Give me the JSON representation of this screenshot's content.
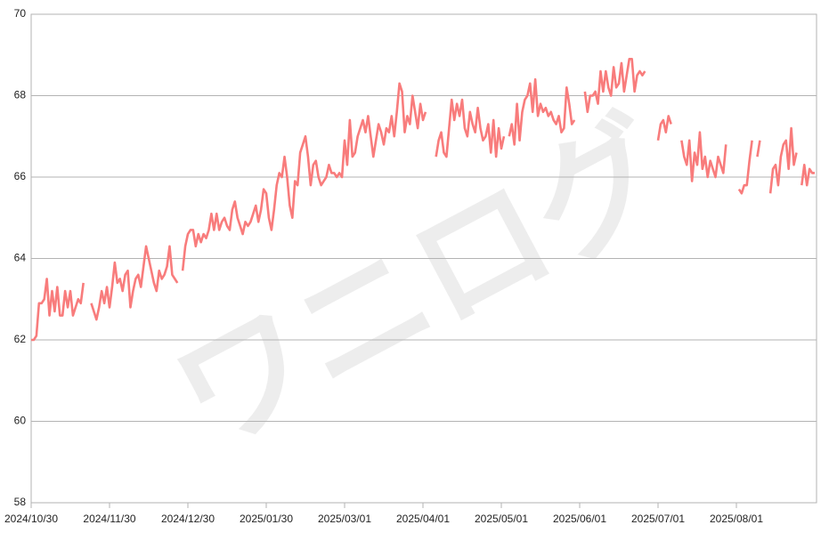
{
  "chart_data": {
    "type": "line",
    "color": "#f87c7c",
    "grid": true,
    "watermark": "ワニログ",
    "ylim": [
      58,
      70
    ],
    "yticks": [
      58,
      60,
      62,
      64,
      66,
      68,
      70
    ],
    "categories": [
      "2024/10/30",
      null,
      null,
      null,
      null,
      null,
      null,
      null,
      null,
      null,
      null,
      null,
      null,
      null,
      null,
      null,
      null,
      null,
      null,
      null,
      null,
      null,
      null,
      null,
      null,
      null,
      null,
      null,
      null,
      null,
      "2024/11/30",
      null,
      null,
      null,
      null,
      null,
      null,
      null,
      null,
      null,
      null,
      null,
      null,
      null,
      null,
      null,
      null,
      null,
      null,
      null,
      null,
      null,
      null,
      null,
      null,
      null,
      null,
      null,
      null,
      null,
      "2024/12/30",
      null,
      null,
      null,
      null,
      null,
      null,
      null,
      null,
      null,
      null,
      null,
      null,
      null,
      null,
      null,
      null,
      null,
      null,
      null,
      null,
      null,
      null,
      null,
      null,
      null,
      null,
      null,
      null,
      null,
      "2025/01/30",
      null,
      null,
      null,
      null,
      null,
      null,
      null,
      null,
      null,
      null,
      null,
      null,
      null,
      null,
      null,
      null,
      null,
      null,
      null,
      null,
      null,
      null,
      null,
      null,
      null,
      null,
      null,
      null,
      null,
      "2025/03/01",
      null,
      null,
      null,
      null,
      null,
      null,
      null,
      null,
      null,
      null,
      null,
      null,
      null,
      null,
      null,
      null,
      null,
      null,
      null,
      null,
      null,
      null,
      null,
      null,
      null,
      null,
      null,
      null,
      null,
      "2025/04/01",
      null,
      null,
      null,
      null,
      null,
      null,
      null,
      null,
      null,
      null,
      null,
      null,
      null,
      null,
      null,
      null,
      null,
      null,
      null,
      null,
      null,
      null,
      null,
      null,
      null,
      null,
      null,
      null,
      null,
      "2025/05/01",
      null,
      null,
      null,
      null,
      null,
      null,
      null,
      null,
      null,
      null,
      null,
      null,
      null,
      null,
      null,
      null,
      null,
      null,
      null,
      null,
      null,
      null,
      null,
      null,
      null,
      null,
      null,
      null,
      null,
      "2025/06/01",
      null,
      null,
      null,
      null,
      null,
      null,
      null,
      null,
      null,
      null,
      null,
      null,
      null,
      null,
      null,
      null,
      null,
      null,
      null,
      null,
      null,
      null,
      null,
      null,
      null,
      null,
      null,
      null,
      null,
      "2025/07/01",
      null,
      null,
      null,
      null,
      null,
      null,
      null,
      null,
      null,
      null,
      null,
      null,
      null,
      null,
      null,
      null,
      null,
      null,
      null,
      null,
      null,
      null,
      null,
      null,
      null,
      null,
      null,
      null,
      null,
      "2025/08/01",
      null,
      null,
      null,
      null,
      null,
      null,
      null,
      null,
      null,
      null,
      null,
      null,
      null,
      null,
      null,
      null,
      null,
      null,
      null,
      null,
      null,
      null,
      null,
      null,
      null,
      null,
      null,
      null,
      null,
      null
    ],
    "values": [
      62.0,
      62.0,
      62.1,
      62.9,
      62.9,
      63.0,
      63.5,
      62.6,
      63.2,
      62.7,
      63.3,
      62.6,
      62.6,
      63.2,
      62.8,
      63.2,
      62.6,
      62.8,
      63.0,
      62.9,
      63.4,
      null,
      null,
      62.9,
      62.7,
      62.5,
      62.8,
      63.2,
      62.9,
      63.3,
      62.8,
      63.3,
      63.9,
      63.4,
      63.5,
      63.2,
      63.6,
      63.7,
      62.8,
      63.2,
      63.5,
      63.6,
      63.3,
      63.8,
      64.3,
      64.0,
      63.7,
      63.4,
      63.2,
      63.7,
      63.5,
      63.6,
      63.8,
      64.3,
      63.6,
      63.5,
      63.4,
      null,
      63.7,
      64.3,
      64.6,
      64.7,
      64.7,
      64.3,
      64.6,
      64.4,
      64.6,
      64.5,
      64.7,
      65.1,
      64.7,
      65.1,
      64.7,
      64.9,
      65.0,
      64.8,
      64.7,
      65.2,
      65.4,
      65.0,
      64.8,
      64.6,
      64.9,
      64.8,
      64.9,
      65.1,
      65.3,
      64.9,
      65.2,
      65.7,
      65.6,
      65.0,
      64.7,
      65.2,
      65.8,
      66.1,
      66.0,
      66.5,
      66.0,
      65.3,
      65.0,
      65.9,
      65.8,
      66.6,
      66.8,
      67.0,
      66.5,
      65.8,
      66.3,
      66.4,
      66.0,
      65.8,
      65.9,
      66.0,
      66.3,
      66.1,
      66.1,
      66.0,
      66.1,
      66.0,
      66.9,
      66.3,
      67.4,
      66.5,
      66.6,
      67.0,
      67.2,
      67.4,
      67.1,
      67.5,
      67.0,
      66.5,
      66.9,
      67.3,
      67.1,
      66.8,
      67.2,
      67.1,
      67.5,
      67.0,
      67.6,
      68.3,
      68.1,
      67.1,
      67.5,
      67.3,
      68.0,
      67.6,
      67.2,
      67.8,
      67.4,
      67.6,
      null,
      null,
      null,
      66.5,
      66.9,
      67.1,
      66.6,
      66.5,
      67.2,
      67.9,
      67.4,
      67.8,
      67.5,
      67.9,
      67.2,
      67.0,
      67.6,
      67.3,
      67.1,
      67.7,
      67.2,
      66.9,
      67.0,
      67.3,
      66.6,
      67.4,
      66.5,
      67.2,
      66.7,
      67.0,
      null,
      67.0,
      67.3,
      66.8,
      67.8,
      66.9,
      67.6,
      67.9,
      68.0,
      68.3,
      67.6,
      68.4,
      67.5,
      67.8,
      67.6,
      67.7,
      67.5,
      67.6,
      67.4,
      67.3,
      67.5,
      67.1,
      67.2,
      68.2,
      67.8,
      67.3,
      67.4,
      null,
      null,
      null,
      68.1,
      67.6,
      68.0,
      68.0,
      68.1,
      67.8,
      68.6,
      68.1,
      68.6,
      68.2,
      68.0,
      68.7,
      68.2,
      68.3,
      68.8,
      68.1,
      68.5,
      68.9,
      68.9,
      68.1,
      68.5,
      68.6,
      68.5,
      68.6,
      null,
      null,
      null,
      null,
      66.9,
      67.3,
      67.4,
      67.1,
      67.5,
      67.3,
      null,
      null,
      null,
      66.9,
      66.5,
      66.3,
      66.9,
      65.9,
      66.6,
      66.3,
      67.1,
      66.2,
      66.5,
      66.0,
      66.4,
      66.2,
      66.0,
      66.5,
      66.3,
      66.1,
      66.8,
      null,
      null,
      null,
      null,
      65.7,
      65.6,
      65.8,
      65.8,
      66.4,
      66.9,
      null,
      66.5,
      66.9,
      null,
      null,
      null,
      65.6,
      66.2,
      66.3,
      65.8,
      66.5,
      66.8,
      66.9,
      66.2,
      67.2,
      66.3,
      66.6,
      null,
      65.8,
      66.3,
      65.8,
      66.2,
      66.1,
      66.1
    ]
  }
}
